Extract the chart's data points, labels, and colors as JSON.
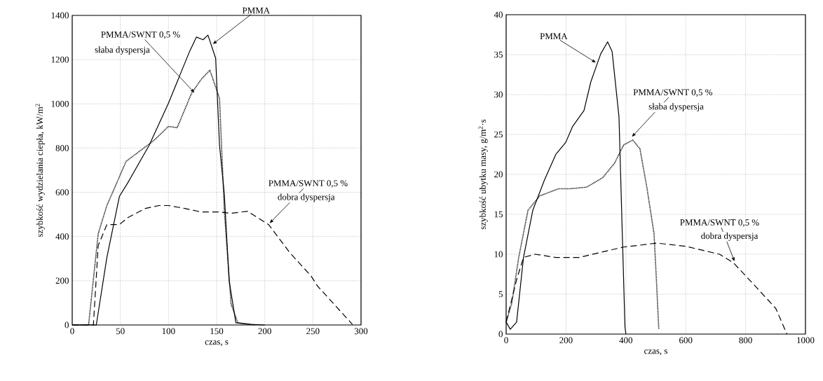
{
  "chart_data": [
    {
      "type": "line",
      "xlabel": "czas, s",
      "ylabel": "szybkość wydzielania ciepła, kW/m$^{2}$",
      "xlim": [
        0,
        300
      ],
      "ylim": [
        0,
        1400
      ],
      "xticks": [
        0,
        50,
        100,
        150,
        200,
        250,
        300
      ],
      "yticks": [
        0,
        200,
        400,
        600,
        800,
        1000,
        1200,
        1400
      ],
      "grid": true,
      "series": [
        {
          "color": "#000000",
          "line_style": "solid",
          "x": [
            0,
            25,
            36,
            49,
            58,
            80,
            100,
            122,
            129,
            136,
            141,
            149,
            153,
            158,
            163,
            170,
            185,
            200
          ],
          "values": [
            0,
            0,
            305,
            581,
            645,
            813,
            1003,
            1238,
            1302,
            1290,
            1311,
            1206,
            813,
            591,
            200,
            10,
            3,
            0
          ]
        },
        {
          "color": "#000000",
          "line_style": "dotted",
          "x": [
            0,
            17,
            27,
            36,
            56,
            85,
            100,
            109,
            124,
            134,
            143,
            153,
            158,
            165,
            172,
            190
          ],
          "values": [
            0,
            0,
            413,
            540,
            740,
            835,
            898,
            892,
            1048,
            1111,
            1152,
            1025,
            517,
            95,
            10,
            0
          ]
        },
        {
          "color": "#000000",
          "line_style": "dashed",
          "x": [
            0,
            22,
            27,
            36,
            49,
            58,
            76,
            90,
            100,
            117,
            134,
            153,
            165,
            182,
            204,
            226,
            248,
            255,
            291
          ],
          "values": [
            0,
            0,
            359,
            454,
            454,
            486,
            527,
            540,
            540,
            527,
            511,
            511,
            505,
            514,
            454,
            327,
            222,
            175,
            3
          ]
        }
      ],
      "annotations": [
        {
          "text": "PMMA",
          "x": 146,
          "y": 1270
        },
        {
          "text": "PMMA/SWNT 0,5 %",
          "x": 127,
          "y": 1050
        },
        "słaba dyspersja",
        {
          "text": "PMMA/SWNT 0,5 %",
          "x": 205,
          "y": 460
        },
        "dobra dyspersja"
      ]
    },
    {
      "type": "line",
      "xlabel": "czas, s",
      "ylabel": "szybkość ubytku masy, g/m$^{2}$·s",
      "xlim": [
        0,
        1000
      ],
      "ylim": [
        0,
        40
      ],
      "xticks": [
        0,
        200,
        400,
        600,
        800,
        1000
      ],
      "yticks": [
        0,
        5,
        10,
        15,
        20,
        25,
        30,
        35,
        40
      ],
      "grid": true,
      "series": [
        {
          "color": "#000000",
          "line_style": "solid",
          "x": [
            0,
            14,
            35,
            58,
            89,
            128,
            166,
            199,
            222,
            260,
            283,
            299,
            316,
            339,
            354,
            377,
            388,
            397,
            400
          ],
          "values": [
            1.5,
            0.6,
            1.5,
            9.6,
            15.5,
            19.3,
            22.5,
            24,
            26,
            28,
            31.6,
            33.3,
            35.1,
            36.6,
            35.4,
            27.2,
            12.6,
            0.9,
            0
          ]
        },
        {
          "color": "#000000",
          "line_style": "dotted",
          "x": [
            0,
            19,
            42,
            73,
            112,
            175,
            213,
            269,
            323,
            362,
            393,
            423,
            447,
            470,
            494,
            502,
            510
          ],
          "values": [
            1.5,
            3.9,
            9.6,
            15.5,
            17.3,
            18.2,
            18.2,
            18.4,
            19.6,
            21.4,
            23.7,
            24.3,
            23.2,
            18.4,
            12.6,
            6.8,
            0.6
          ]
        },
        {
          "color": "#000000",
          "line_style": "dashed",
          "x": [
            0,
            35,
            58,
            96,
            166,
            245,
            323,
            393,
            440,
            503,
            599,
            713,
            760,
            830,
            901,
            938
          ],
          "values": [
            1.5,
            6.8,
            9.6,
            10,
            9.6,
            9.6,
            10.3,
            10.9,
            11.1,
            11.4,
            11,
            10,
            8.9,
            6.1,
            3.2,
            0
          ]
        }
      ],
      "annotations": [
        {
          "text": "PMMA",
          "x": 300,
          "y": 34
        },
        {
          "text": "PMMA/SWNT 0,5 %",
          "x": 420,
          "y": 24.7
        },
        "słaba dyspersja",
        {
          "text": "PMMA/SWNT 0,5 %",
          "x": 763,
          "y": 9.1
        },
        "dobra dyspersja"
      ]
    }
  ]
}
